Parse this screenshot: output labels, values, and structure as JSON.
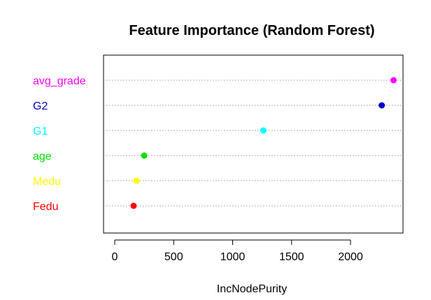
{
  "chart_data": {
    "type": "scatter",
    "title": "Feature Importance (Random Forest)",
    "xlabel": "IncNodePurity",
    "ylabel": "",
    "xlim": [
      -100,
      2430
    ],
    "xticks": [
      0,
      500,
      1000,
      1500,
      2000
    ],
    "grid": "horizontal dotted per category",
    "legend": "none",
    "categories": [
      "avg_grade",
      "G2",
      "G1",
      "age",
      "Medu",
      "Fedu"
    ],
    "values": [
      2365,
      2265,
      1260,
      250,
      185,
      160
    ],
    "colors": [
      "#ff00ff",
      "#0000cc",
      "#00ffff",
      "#00dd00",
      "#ffff00",
      "#ff0000"
    ]
  }
}
